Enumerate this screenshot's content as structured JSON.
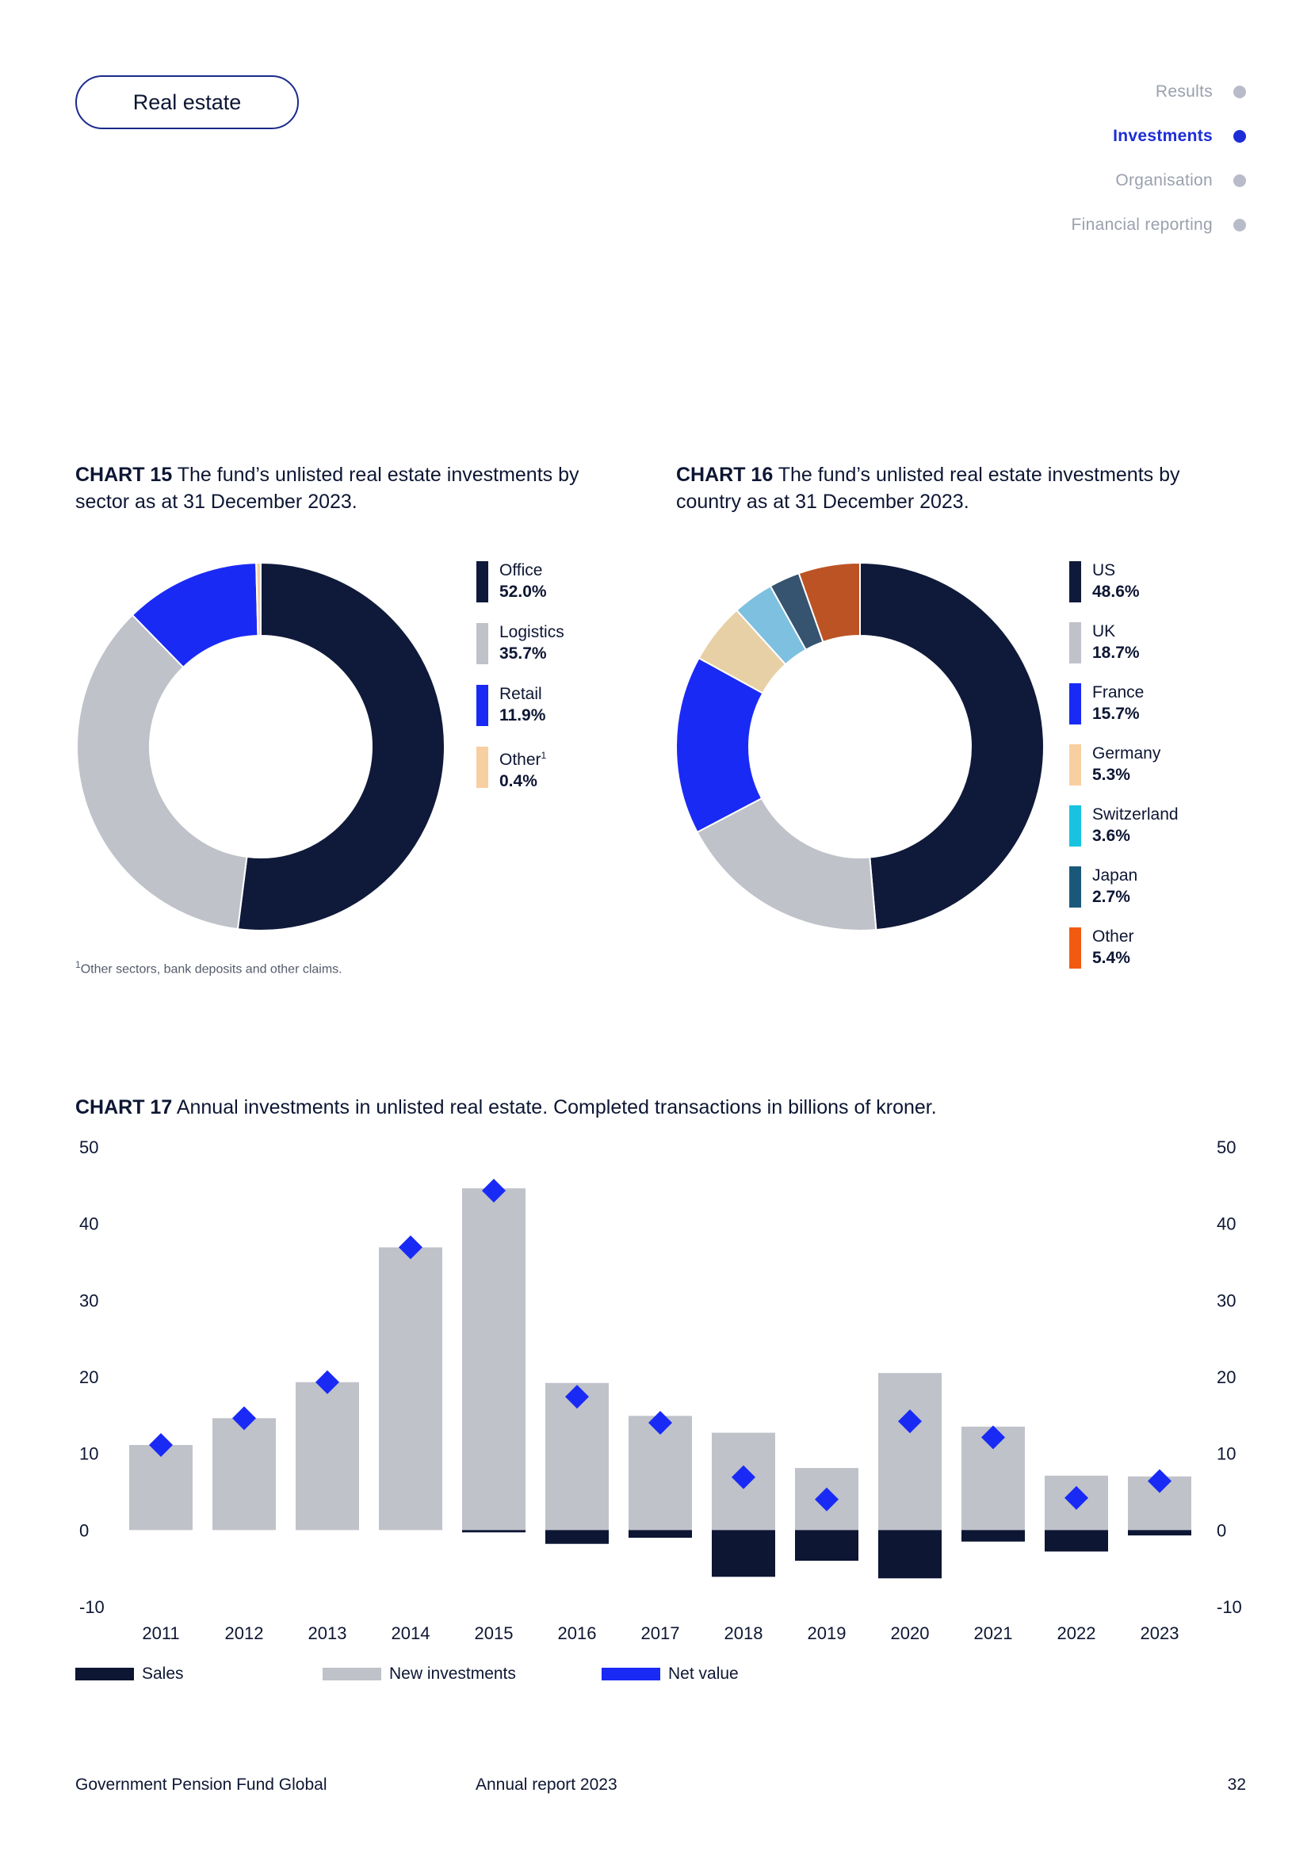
{
  "section_label": "Real estate",
  "nav": [
    {
      "label": "Results",
      "active": false
    },
    {
      "label": "Investments",
      "active": true
    },
    {
      "label": "Organisation",
      "active": false
    },
    {
      "label": "Financial reporting",
      "active": false
    }
  ],
  "chart15": {
    "title_bold": "CHART 15",
    "title_rest": " The fund’s unlisted real estate investments by sector as at 31 December 2023.",
    "footnote": "Other sectors, bank deposits and other claims.",
    "footnote_mark": "1"
  },
  "chart16": {
    "title_bold": "CHART 16",
    "title_rest": " The fund’s unlisted real estate investments by country as at 31 December 2023."
  },
  "chart17": {
    "title_bold": "CHART 17",
    "title_rest": " Annual investments in unlisted real estate. Completed transactions in billions of kroner."
  },
  "chart_data": [
    {
      "type": "pie",
      "title": "CHART 15 The fund’s unlisted real estate investments by sector as at 31 December 2023.",
      "slices": [
        {
          "label": "Office",
          "value": 52.0,
          "display": "52.0%",
          "color": "#0f1a3a"
        },
        {
          "label": "Logistics",
          "value": 35.7,
          "display": "35.7%",
          "color": "#bfc2c9"
        },
        {
          "label": "Retail",
          "value": 11.9,
          "display": "11.9%",
          "color": "#1a2af5"
        },
        {
          "label": "Other",
          "sup": "1",
          "value": 0.4,
          "display": "0.4%",
          "color": "#f8cfa0"
        }
      ]
    },
    {
      "type": "pie",
      "title": "CHART 16 The fund’s unlisted real estate investments by country as at 31 December 2023.",
      "slices": [
        {
          "label": "US",
          "value": 48.6,
          "display": "48.6%",
          "color": "#0f1a3a"
        },
        {
          "label": "UK",
          "value": 18.7,
          "display": "18.7%",
          "color": "#bfc2c9"
        },
        {
          "label": "France",
          "value": 15.7,
          "display": "15.7%",
          "color": "#1a2af5"
        },
        {
          "label": "Germany",
          "value": 5.3,
          "display": "5.3%",
          "color": "#e8d0a6"
        },
        {
          "label": "Switzerland",
          "value": 3.6,
          "display": "3.6%",
          "color": "#7ec0e0"
        },
        {
          "label": "Japan",
          "value": 2.7,
          "display": "2.7%",
          "color": "#36536f"
        },
        {
          "label": "Other",
          "value": 5.4,
          "display": "5.4%",
          "color": "#bc5324"
        }
      ],
      "legend_colors": [
        "#0f1a3a",
        "#bfc2c9",
        "#1a2af5",
        "#f8cfa0",
        "#19c3e0",
        "#1a587a",
        "#f25a12"
      ]
    },
    {
      "type": "bar",
      "title": "CHART 17 Annual investments in unlisted real estate. Completed transactions in billions of kroner.",
      "categories": [
        "2011",
        "2012",
        "2013",
        "2014",
        "2015",
        "2016",
        "2017",
        "2018",
        "2019",
        "2020",
        "2021",
        "2022",
        "2023"
      ],
      "ylim": [
        -10,
        50
      ],
      "yticks": [
        50,
        40,
        30,
        20,
        10,
        0,
        -10
      ],
      "series": [
        {
          "name": "Sales",
          "color": "#0d1633",
          "values": [
            0,
            0,
            0,
            0,
            -0.3,
            -1.8,
            -1.0,
            -6.1,
            -4.0,
            -6.3,
            -1.5,
            -2.8,
            -0.7
          ]
        },
        {
          "name": "New investments",
          "color": "#bfc2c9",
          "values": [
            11.1,
            14.6,
            19.3,
            36.9,
            44.6,
            19.2,
            14.9,
            12.7,
            8.1,
            20.5,
            13.5,
            7.1,
            7.0
          ]
        },
        {
          "name": "Net value",
          "color": "#1a2af5",
          "values": [
            11.1,
            14.6,
            19.3,
            36.9,
            44.3,
            17.4,
            14.0,
            6.9,
            4.0,
            14.2,
            12.1,
            4.2,
            6.4
          ]
        }
      ]
    }
  ],
  "footer": {
    "left": "Government Pension Fund Global",
    "center": "Annual report 2023",
    "page": "32"
  }
}
